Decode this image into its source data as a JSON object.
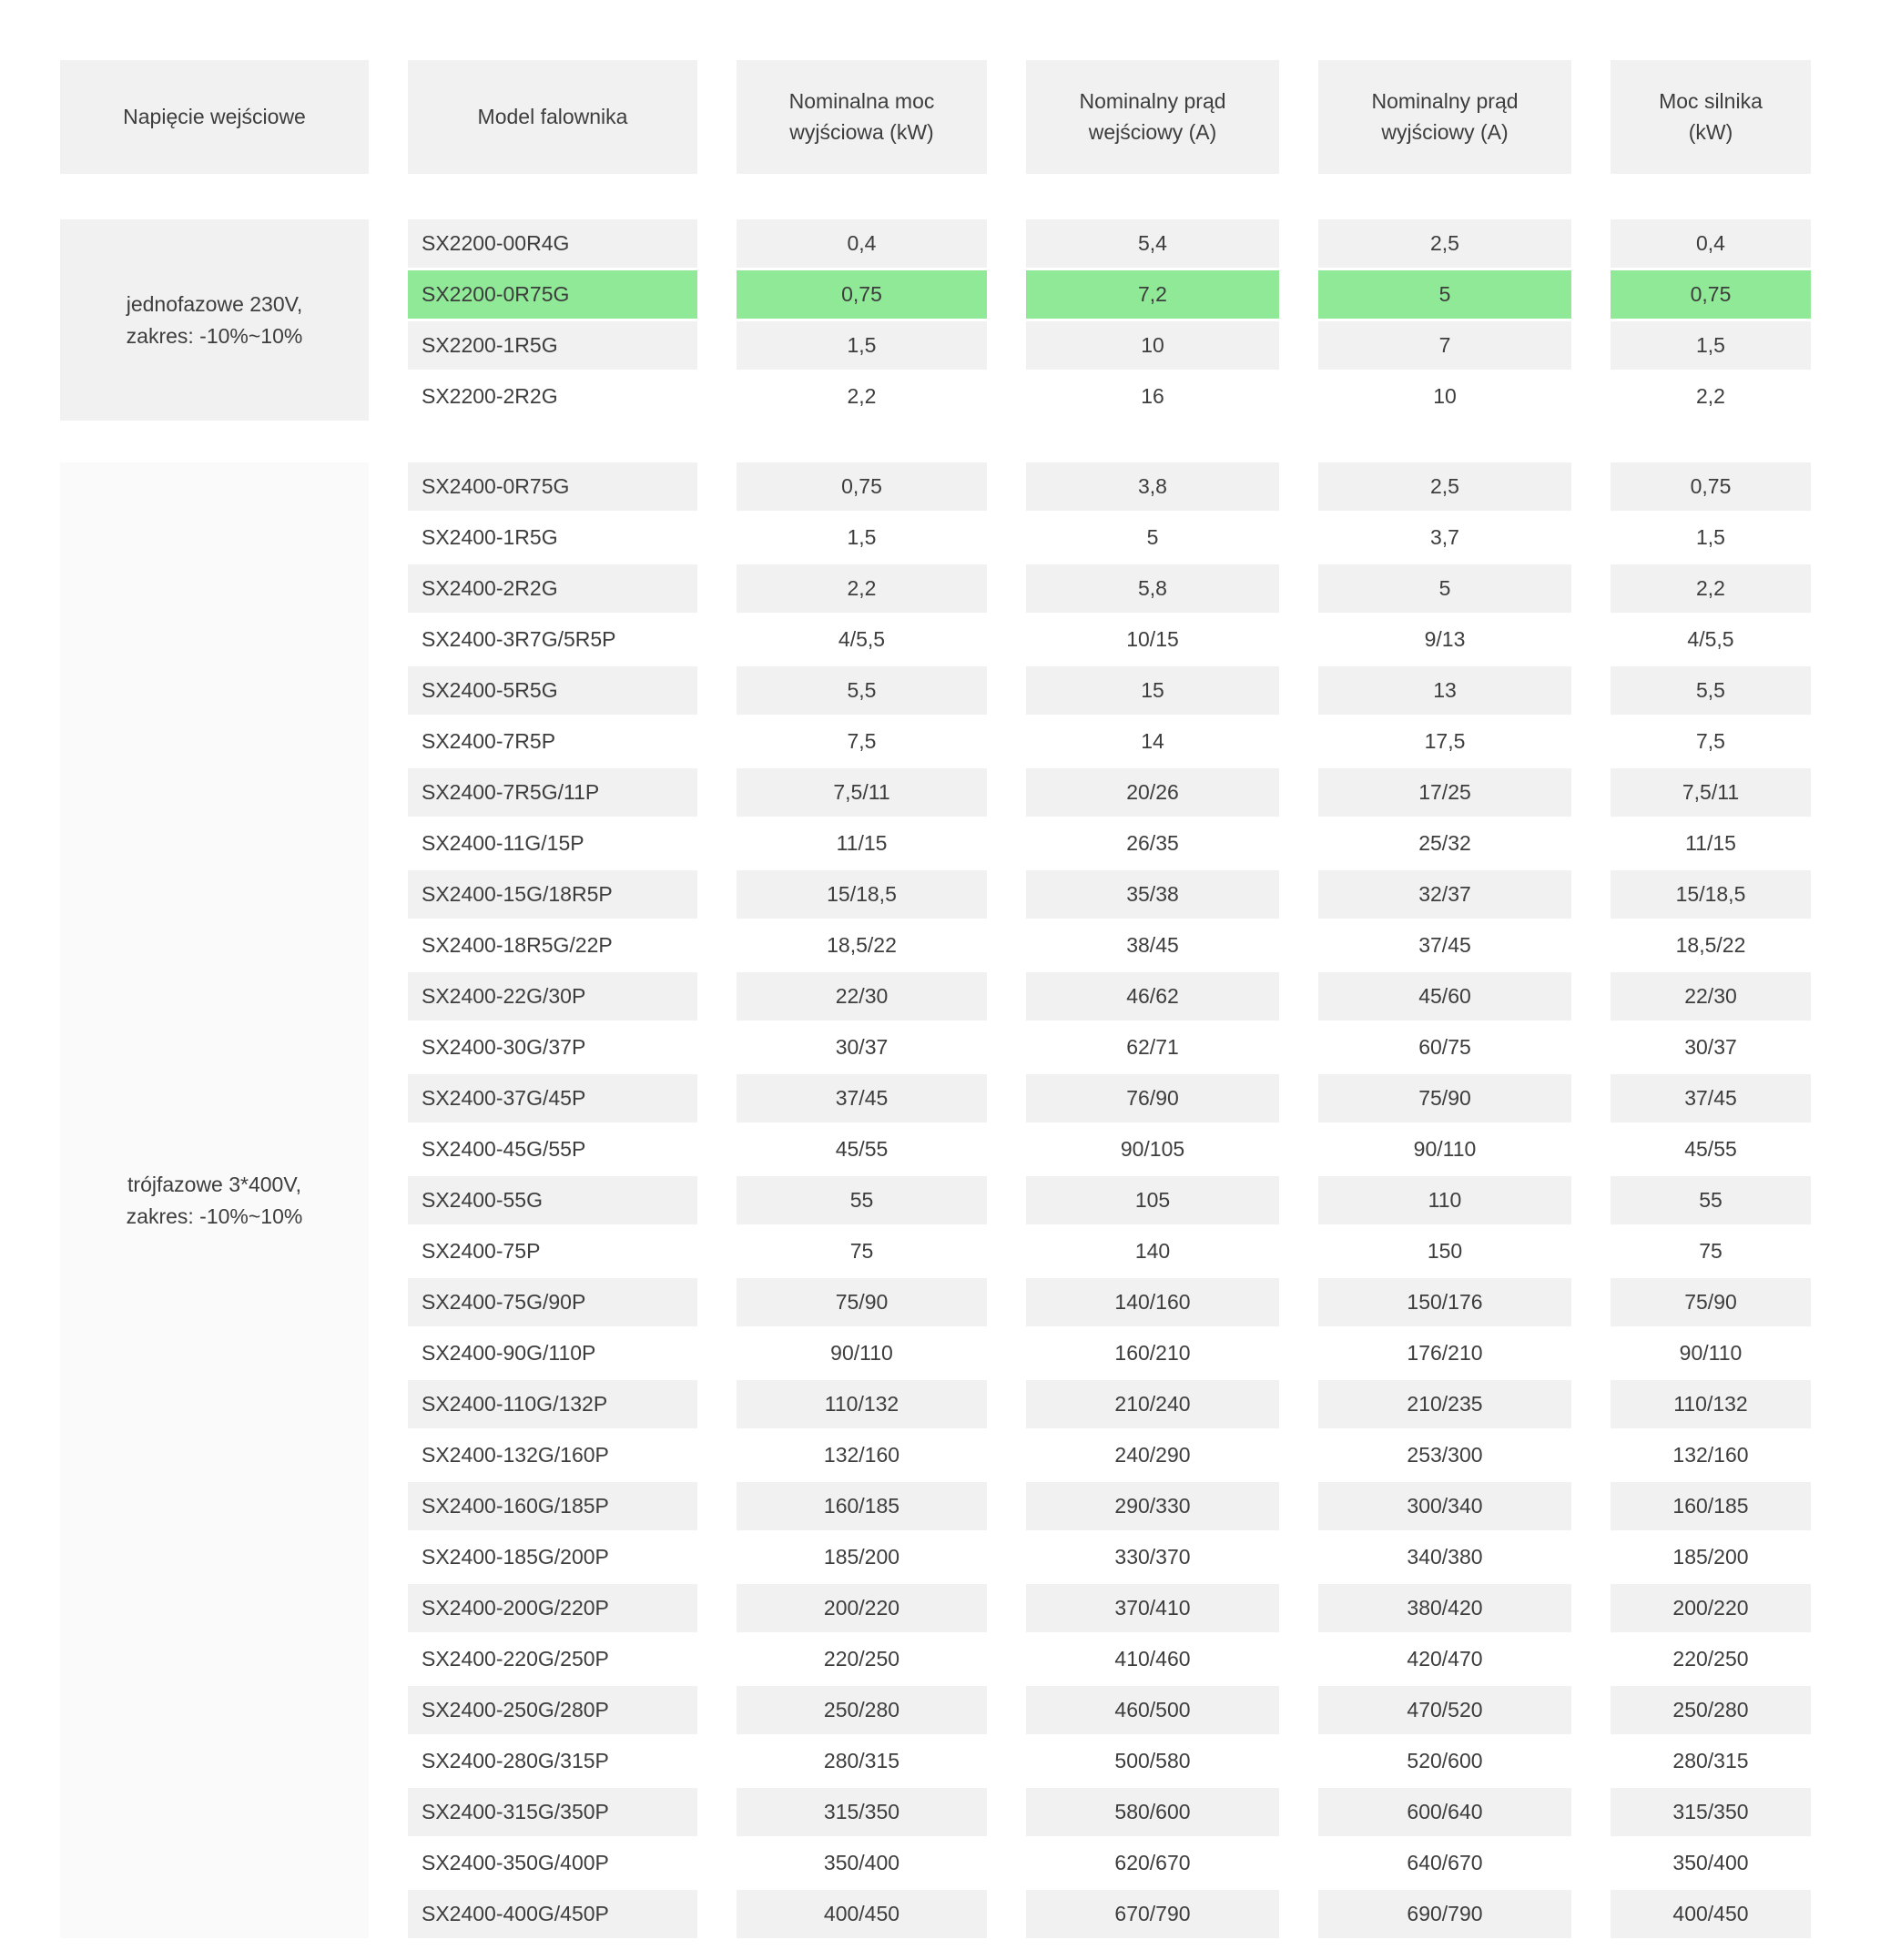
{
  "colors": {
    "highlight_green": "#8fe996",
    "stripe_gray": "#f1f1f1",
    "header_gray": "#f1f1f1",
    "voltage2_bg": "#fafafa",
    "text": "#3d3d3d"
  },
  "chart_data": {
    "type": "table",
    "columns": [
      "Napięcie wejściowe",
      "Model falownika",
      "Nominalna moc wyjściowa (kW)",
      "Nominalny prąd wejściowy (A)",
      "Nominalny prąd wyjściowy (A)",
      "Moc silnika (kW)"
    ],
    "groups": [
      {
        "voltage_lines": [
          "jednofazowe 230V,",
          "zakres: -10%~10%"
        ],
        "highlight_row": 1,
        "rows": [
          [
            "SX2200-00R4G",
            "0,4",
            "5,4",
            "2,5",
            "0,4"
          ],
          [
            "SX2200-0R75G",
            "0,75",
            "7,2",
            "5",
            "0,75"
          ],
          [
            "SX2200-1R5G",
            "1,5",
            "10",
            "7",
            "1,5"
          ],
          [
            "SX2200-2R2G",
            "2,2",
            "16",
            "10",
            "2,2"
          ]
        ]
      },
      {
        "voltage_lines": [
          "trójfazowe 3*400V,",
          "zakres: -10%~10%"
        ],
        "highlight_row": null,
        "rows": [
          [
            "SX2400-0R75G",
            "0,75",
            "3,8",
            "2,5",
            "0,75"
          ],
          [
            "SX2400-1R5G",
            "1,5",
            "5",
            "3,7",
            "1,5"
          ],
          [
            "SX2400-2R2G",
            "2,2",
            "5,8",
            "5",
            "2,2"
          ],
          [
            "SX2400-3R7G/5R5P",
            "4/5,5",
            "10/15",
            "9/13",
            "4/5,5"
          ],
          [
            "SX2400-5R5G",
            "5,5",
            "15",
            "13",
            "5,5"
          ],
          [
            "SX2400-7R5P",
            "7,5",
            "14",
            "17,5",
            "7,5"
          ],
          [
            "SX2400-7R5G/11P",
            "7,5/11",
            "20/26",
            "17/25",
            "7,5/11"
          ],
          [
            "SX2400-11G/15P",
            "11/15",
            "26/35",
            "25/32",
            "11/15"
          ],
          [
            "SX2400-15G/18R5P",
            "15/18,5",
            "35/38",
            "32/37",
            "15/18,5"
          ],
          [
            "SX2400-18R5G/22P",
            "18,5/22",
            "38/45",
            "37/45",
            "18,5/22"
          ],
          [
            "SX2400-22G/30P",
            "22/30",
            "46/62",
            "45/60",
            "22/30"
          ],
          [
            "SX2400-30G/37P",
            "30/37",
            "62/71",
            "60/75",
            "30/37"
          ],
          [
            "SX2400-37G/45P",
            "37/45",
            "76/90",
            "75/90",
            "37/45"
          ],
          [
            "SX2400-45G/55P",
            "45/55",
            "90/105",
            "90/110",
            "45/55"
          ],
          [
            "SX2400-55G",
            "55",
            "105",
            "110",
            "55"
          ],
          [
            "SX2400-75P",
            "75",
            "140",
            "150",
            "75"
          ],
          [
            "SX2400-75G/90P",
            "75/90",
            "140/160",
            "150/176",
            "75/90"
          ],
          [
            "SX2400-90G/110P",
            "90/110",
            "160/210",
            "176/210",
            "90/110"
          ],
          [
            "SX2400-110G/132P",
            "110/132",
            "210/240",
            "210/235",
            "110/132"
          ],
          [
            "SX2400-132G/160P",
            "132/160",
            "240/290",
            "253/300",
            "132/160"
          ],
          [
            "SX2400-160G/185P",
            "160/185",
            "290/330",
            "300/340",
            "160/185"
          ],
          [
            "SX2400-185G/200P",
            "185/200",
            "330/370",
            "340/380",
            "185/200"
          ],
          [
            "SX2400-200G/220P",
            "200/220",
            "370/410",
            "380/420",
            "200/220"
          ],
          [
            "SX2400-220G/250P",
            "220/250",
            "410/460",
            "420/470",
            "220/250"
          ],
          [
            "SX2400-250G/280P",
            "250/280",
            "460/500",
            "470/520",
            "250/280"
          ],
          [
            "SX2400-280G/315P",
            "280/315",
            "500/580",
            "520/600",
            "280/315"
          ],
          [
            "SX2400-315G/350P",
            "315/350",
            "580/600",
            "600/640",
            "315/350"
          ],
          [
            "SX2400-350G/400P",
            "350/400",
            "620/670",
            "640/670",
            "350/400"
          ],
          [
            "SX2400-400G/450P",
            "400/450",
            "670/790",
            "690/790",
            "400/450"
          ]
        ]
      }
    ]
  }
}
